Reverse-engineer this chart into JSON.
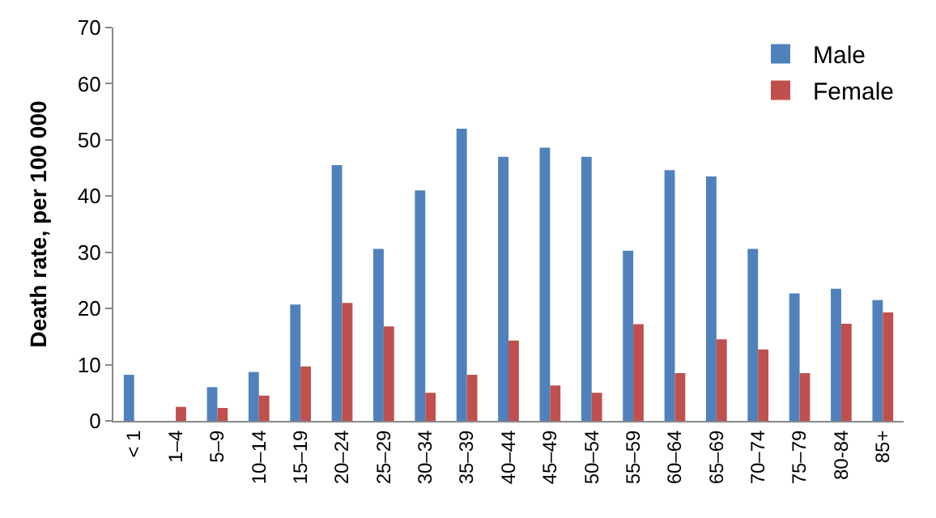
{
  "chart_data": {
    "type": "bar",
    "ylabel": "Death rate, per 100 000",
    "categories": [
      "< 1",
      "1–4",
      "5–9",
      "10–14",
      "15–19",
      "20–24",
      "25–29",
      "30–34",
      "35–39",
      "40–44",
      "45–49",
      "50–54",
      "55–59",
      "60–64",
      "65–69",
      "70–74",
      "75–79",
      "80-84",
      "85+"
    ],
    "series": [
      {
        "name": "Male",
        "color": "#4f81bd",
        "values": [
          8.2,
          0,
          6,
          8.7,
          20.7,
          45.5,
          30.6,
          41,
          52,
          47,
          48.6,
          47,
          30.3,
          44.6,
          43.5,
          30.6,
          22.7,
          23.5,
          21.5
        ]
      },
      {
        "name": "Female",
        "color": "#c0504d",
        "values": [
          0,
          2.5,
          2.3,
          4.5,
          9.7,
          21,
          16.8,
          5,
          8.2,
          14.3,
          6.3,
          5,
          17.2,
          8.5,
          14.5,
          12.7,
          8.5,
          17.3,
          19.3
        ]
      }
    ],
    "ylim": [
      0,
      70
    ],
    "yticks": [
      0,
      10,
      20,
      30,
      40,
      50,
      60,
      70
    ],
    "grid": false,
    "legend": "top right"
  }
}
